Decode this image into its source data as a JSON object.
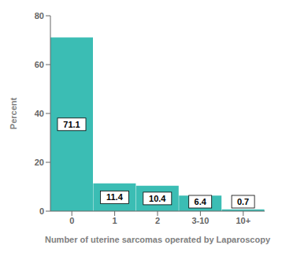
{
  "chart_data": {
    "type": "bar",
    "categories": [
      "0",
      "1",
      "2",
      "3-10",
      "10+"
    ],
    "values": [
      71.1,
      11.4,
      10.4,
      6.4,
      0.7
    ],
    "color": "#3bbdb4",
    "xlabel": "Number of uterine sarcomas operated by Laparoscopy",
    "ylabel": "Percent",
    "ylim": [
      0,
      80
    ],
    "yticks": [
      0,
      20,
      40,
      60,
      80
    ],
    "grid": false,
    "data_labels": true
  }
}
